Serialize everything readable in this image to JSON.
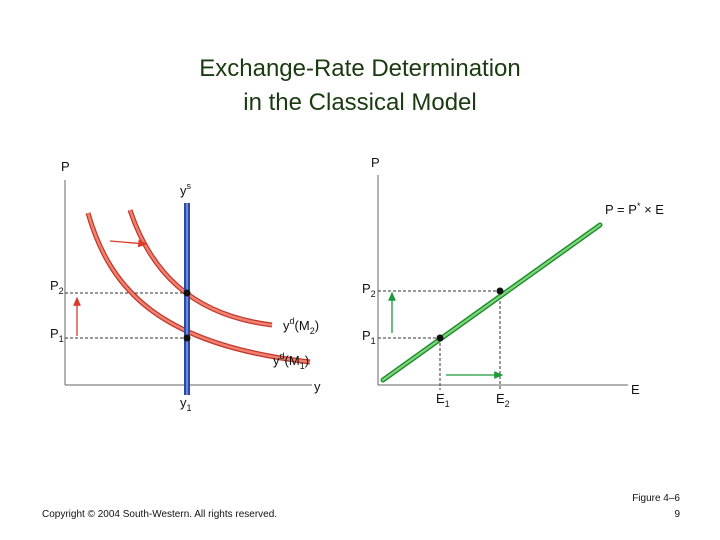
{
  "title": {
    "line1": "Exchange-Rate Determination",
    "line2": "in the Classical Model"
  },
  "left_panel": {
    "y_axis": "P",
    "x_axis": "y",
    "supply": [
      "y",
      "s"
    ],
    "p2": [
      "P",
      "2"
    ],
    "p1": [
      "P",
      "1"
    ],
    "y1": [
      "y",
      "1"
    ],
    "demand_m2": [
      "y",
      "d",
      "(M",
      "2",
      ")"
    ],
    "demand_m1": [
      "y",
      "d",
      "(M",
      "1",
      ")"
    ]
  },
  "right_panel": {
    "y_axis": "P",
    "x_axis": "E",
    "equation": [
      "P = P",
      "*",
      " × E"
    ],
    "p2": [
      "P",
      "2"
    ],
    "p1": [
      "P",
      "1"
    ],
    "e1": [
      "E",
      "1"
    ],
    "e2": [
      "E",
      "2"
    ]
  },
  "footer": {
    "copyright": "Copyright © 2004 South-Western. All rights reserved.",
    "figure": "Figure 4–6",
    "page": "9"
  }
}
